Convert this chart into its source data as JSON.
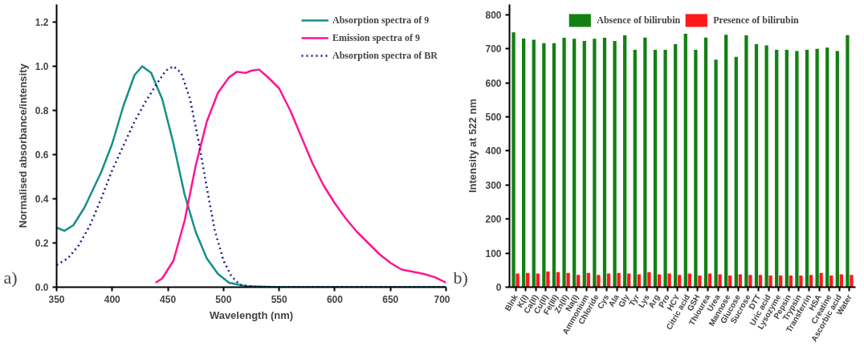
{
  "chart_data": [
    {
      "type": "line",
      "annotations": [
        "a)"
      ],
      "xlabel": "Wavelength (nm)",
      "ylabel": "Normalised absorbance/intensity",
      "xlim": [
        350,
        700
      ],
      "ylim": [
        0,
        1.28
      ],
      "xticks": [
        350,
        400,
        450,
        500,
        550,
        600,
        650,
        700
      ],
      "yticks": [
        {
          "value": 0,
          "label": "0.0"
        },
        0.2,
        0.4,
        0.6,
        0.8,
        {
          "value": 1,
          "label": "1.0"
        },
        1.2
      ],
      "grid": false,
      "legend": "top right",
      "series": [
        {
          "name": "Absorption spectra of 9",
          "color": "#14908a",
          "line_style": "solid",
          "x": [
            350,
            357,
            365,
            375,
            390,
            400,
            410,
            420,
            427,
            435,
            445,
            455,
            465,
            475,
            485,
            495,
            505,
            520,
            550,
            600,
            700
          ],
          "values": [
            0.27,
            0.255,
            0.28,
            0.36,
            0.52,
            0.65,
            0.82,
            0.96,
            1.0,
            0.97,
            0.85,
            0.65,
            0.42,
            0.25,
            0.13,
            0.06,
            0.02,
            0.005,
            0,
            0,
            0
          ]
        },
        {
          "name": "Emission spectra of 9",
          "color": "#ff1493",
          "line_style": "solid",
          "x": [
            439,
            445,
            455,
            465,
            475,
            485,
            495,
            505,
            512,
            520,
            525,
            532,
            540,
            550,
            560,
            570,
            580,
            590,
            600,
            610,
            620,
            630,
            640,
            650,
            660,
            670,
            680,
            690,
            700
          ],
          "values": [
            0.02,
            0.04,
            0.12,
            0.3,
            0.55,
            0.75,
            0.88,
            0.95,
            0.975,
            0.97,
            0.98,
            0.985,
            0.95,
            0.9,
            0.8,
            0.68,
            0.56,
            0.46,
            0.38,
            0.31,
            0.25,
            0.2,
            0.15,
            0.11,
            0.08,
            0.07,
            0.06,
            0.045,
            0.02
          ]
        },
        {
          "name": "Absorption spectra of BR",
          "color": "#1a1a8c",
          "line_style": "dotted",
          "x": [
            350,
            360,
            370,
            380,
            390,
            400,
            410,
            420,
            430,
            440,
            448,
            455,
            462,
            470,
            478,
            485,
            492,
            500,
            507,
            515,
            530,
            700
          ],
          "values": [
            0.1,
            0.13,
            0.19,
            0.28,
            0.4,
            0.53,
            0.64,
            0.75,
            0.84,
            0.92,
            0.98,
            1.0,
            0.97,
            0.85,
            0.65,
            0.45,
            0.26,
            0.12,
            0.05,
            0.01,
            0,
            0
          ]
        }
      ]
    },
    {
      "type": "bar",
      "annotations": [
        "b)"
      ],
      "ylabel": "Intensity at 522 nm",
      "ylim": [
        0,
        830
      ],
      "yticks": [
        0,
        100,
        200,
        300,
        400,
        500,
        600,
        700,
        800
      ],
      "grid": false,
      "legend": "top",
      "categories": [
        "Blnk",
        "K(I)",
        "Ca(II)",
        "Cu(II)",
        "Fe(III)",
        "Zn(II)",
        "Na(I)",
        "Ammonium",
        "Chloride",
        "Cys",
        "Ala",
        "Gly",
        "Tyr",
        "Lys",
        "Arg",
        "Pro",
        "HCY",
        "Citric acid",
        "GSH",
        "Thiourea",
        "Urea",
        "Mannose",
        "Glucose",
        "Sucrose",
        "DTT",
        "Uric acid",
        "Lysozyme",
        "Pepsin",
        "Trypsin",
        "Transferrin",
        "HSA",
        "Creatine",
        "Ascorbic acid",
        "Water"
      ],
      "series": [
        {
          "name": "Absence of bilirubin",
          "color": "#138013",
          "values": [
            748,
            730,
            726,
            716,
            716,
            732,
            729,
            723,
            729,
            732,
            723,
            739,
            697,
            733,
            697,
            697,
            713,
            744,
            697,
            733,
            668,
            741,
            676,
            739,
            713,
            710,
            697,
            697,
            693,
            697,
            700,
            703,
            693,
            740
          ]
        },
        {
          "name": "Presence of bilirubin",
          "color": "#ff1a1a",
          "values": [
            40,
            42,
            40,
            46,
            44,
            42,
            36,
            42,
            36,
            40,
            42,
            40,
            38,
            44,
            38,
            40,
            36,
            40,
            34,
            40,
            38,
            34,
            38,
            36,
            36,
            34,
            34,
            34,
            34,
            36,
            42,
            34,
            38,
            36
          ]
        }
      ]
    }
  ]
}
